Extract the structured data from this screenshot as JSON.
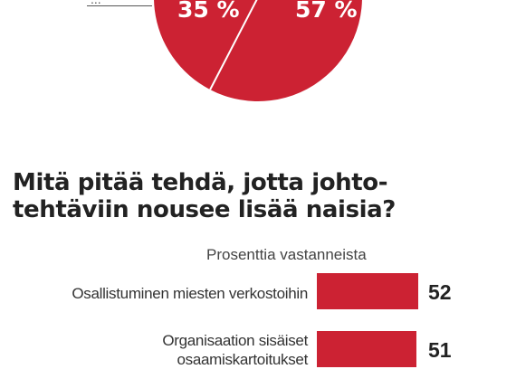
{
  "colors": {
    "accent": "#cc2233",
    "text": "#222222",
    "pie_divider": "#ffffff"
  },
  "chart_data": [
    {
      "type": "pie",
      "values": [
        35,
        57
      ],
      "labels": [
        "35 %",
        "57 %"
      ],
      "colors": [
        "#cc2233",
        "#cc2233"
      ],
      "legend_fragment": "..."
    },
    {
      "type": "bar",
      "title": "Mitä pitää tehdä, jotta johto-tehtäviin nousee lisää naisia?",
      "title_lines": [
        "Mitä pitää tehdä, jotta johto-",
        "tehtäviin nousee lisää naisia?"
      ],
      "unit_label": "Prosenttia vastanneista",
      "categories": [
        "Osallistuminen miesten verkostoihin",
        "Organisaation sisäiset osaamiskartoitukset"
      ],
      "category_lines": [
        [
          "Osallistuminen miesten verkostoihin"
        ],
        [
          "Organisaation sisäiset",
          "osaamiskartoitukset"
        ]
      ],
      "values": [
        52,
        51
      ],
      "xlim": [
        0,
        52
      ]
    }
  ]
}
